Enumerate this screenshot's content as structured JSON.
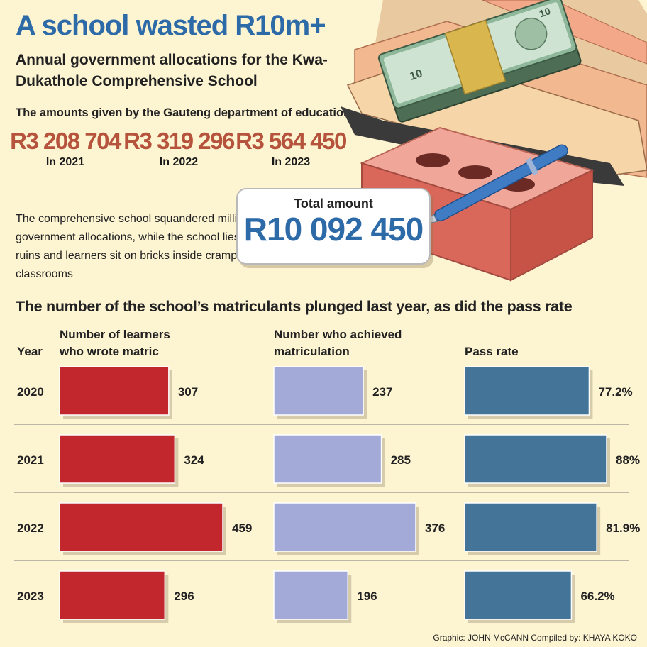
{
  "header": {
    "title": "A school wasted R10m+",
    "subtitle": "Annual government allocations for the Kwa-Dukathole Comprehensive School"
  },
  "allocations": {
    "intro": "The amounts given by the Gauteng department of education",
    "items": [
      {
        "amount": "R3 208 704",
        "year": "In 2021"
      },
      {
        "amount": "R3 319 296",
        "year": "In 2022"
      },
      {
        "amount": "R3 564 450",
        "year": "In 2023"
      }
    ]
  },
  "description": "The comprehensive school squandered millions in government allocations, while the school lies in ruins and learners sit on bricks inside cramped classrooms",
  "total": {
    "label": "Total amount",
    "value": "R10 092 450"
  },
  "chart_heading": "The number of the school’s matriculants plunged last year, as did the pass rate",
  "chart_data": {
    "type": "bar",
    "year_header": "Year",
    "categories": [
      "2020",
      "2021",
      "2022",
      "2023"
    ],
    "series": [
      {
        "name": "Number of learners who wrote matric",
        "values": [
          307,
          324,
          459,
          296
        ],
        "labels": [
          "307",
          "324",
          "459",
          "296"
        ],
        "color": "#c1272d",
        "max": 459
      },
      {
        "name": "Number who achieved matriculation",
        "values": [
          237,
          285,
          376,
          196
        ],
        "labels": [
          "237",
          "285",
          "376",
          "196"
        ],
        "color": "#a4aad8",
        "max": 376
      },
      {
        "name": "Pass rate",
        "values": [
          77.2,
          88,
          81.9,
          66.2
        ],
        "labels": [
          "77.2%",
          "88%",
          "81.9%",
          "66.2%"
        ],
        "color": "#447599",
        "max": 88
      }
    ]
  },
  "credits": "Graphic: JOHN McCANN  Compiled by: KHAYA KOKO",
  "colors": {
    "background": "#fdf4d2",
    "title": "#2d6aa8",
    "amount": "#b5533c"
  }
}
